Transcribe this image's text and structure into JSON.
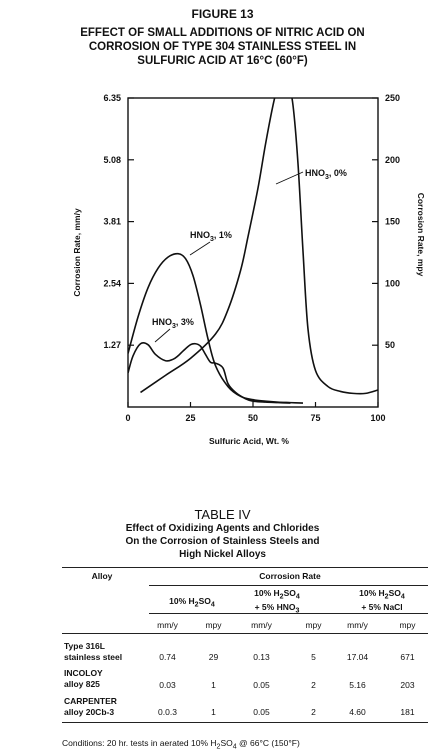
{
  "figure": {
    "label": "FIGURE 13",
    "title_lines": [
      "EFFECT OF SMALL ADDITIONS OF NITRIC ACID ON",
      "CORROSION OF TYPE 304 STAINLESS STEEL IN",
      "SULFURIC ACID AT 16°C (60°F)"
    ]
  },
  "chart_data": {
    "type": "line",
    "title": "EFFECT OF SMALL ADDITIONS OF NITRIC ACID ON CORROSION OF TYPE 304 STAINLESS STEEL IN SULFURIC ACID AT 16°C (60°F)",
    "xlabel": "Sulfuric Acid, Wt. %",
    "ylabel": "Corrosion Rate, mm/y",
    "ylabel_right": "Corrosion Rate, mpy",
    "xlim": [
      0,
      100
    ],
    "ylim": [
      0,
      6.35
    ],
    "ylim_right": [
      0,
      250
    ],
    "xticks": [
      "0",
      "25",
      "50",
      "75",
      "100"
    ],
    "yticks_left": [
      "1.27",
      "2.54",
      "3.81",
      "5.08",
      "6.35"
    ],
    "yticks_right": [
      "50",
      "100",
      "150",
      "200",
      "250"
    ],
    "grid": false,
    "series": [
      {
        "name": "HNO3, 0%",
        "label_main": "HNO",
        "label_sub": "3",
        "label_tail": ", 0%",
        "x": [
          5,
          15,
          25,
          35,
          40,
          45,
          48,
          52,
          55,
          58,
          60,
          62,
          64,
          66,
          68,
          70,
          72,
          75,
          80,
          85,
          90,
          95,
          100
        ],
        "y": [
          0.3,
          0.65,
          1.0,
          1.5,
          2.0,
          2.8,
          3.5,
          4.5,
          5.4,
          6.2,
          6.6,
          6.8,
          6.7,
          6.2,
          5.0,
          3.2,
          1.6,
          0.75,
          0.42,
          0.32,
          0.28,
          0.28,
          0.35
        ]
      },
      {
        "name": "HNO3, 1%",
        "label_main": "HNO",
        "label_sub": "3",
        "label_tail": ", 1%",
        "x": [
          0,
          4,
          8,
          12,
          16,
          20,
          23,
          26,
          29,
          32,
          35,
          40,
          45,
          50,
          55,
          60,
          65,
          70
        ],
        "y": [
          1.1,
          1.85,
          2.45,
          2.85,
          3.08,
          3.15,
          3.05,
          2.7,
          2.1,
          1.4,
          0.85,
          0.42,
          0.22,
          0.15,
          0.12,
          0.1,
          0.09,
          0.08
        ]
      },
      {
        "name": "HNO3, 3%",
        "label_main": "HNO",
        "label_sub": "3",
        "label_tail": ", 3%",
        "x": [
          0,
          2,
          5,
          8,
          11,
          15,
          18,
          20,
          22,
          25,
          27,
          29,
          31,
          33,
          35,
          38,
          40,
          43,
          47,
          50,
          55,
          60,
          65
        ],
        "y": [
          0.7,
          1.05,
          1.3,
          1.28,
          1.08,
          0.95,
          0.98,
          1.05,
          1.15,
          1.28,
          1.3,
          1.25,
          1.08,
          0.92,
          0.9,
          0.8,
          0.48,
          0.3,
          0.17,
          0.12,
          0.1,
          0.09,
          0.08
        ]
      }
    ],
    "annotations": [
      "HNO3, 0%",
      "HNO3, 1%",
      "HNO3, 3%"
    ]
  },
  "table": {
    "title": "TABLE IV",
    "subtitle_lines": [
      "Effect of Oxidizing Agents and Chlorides",
      "On the Corrosion of Stainless Steels and",
      "High Nickel Alloys"
    ],
    "col_alloy": "Alloy",
    "col_group": "Corrosion Rate",
    "conditions": [
      {
        "line1_a": "10% H",
        "line1_s1": "2",
        "line1_b": "SO",
        "line1_s2": "4",
        "line2": ""
      },
      {
        "line1_a": "10% H",
        "line1_s1": "2",
        "line1_b": "SO",
        "line1_s2": "4",
        "line2_a": "+ 5% HNO",
        "line2_s": "3"
      },
      {
        "line1_a": "10% H",
        "line1_s1": "2",
        "line1_b": "SO",
        "line1_s2": "4",
        "line2_a": "+ 5% NaCl",
        "line2_s": ""
      }
    ],
    "units": [
      "mm/y",
      "mpy",
      "mm/y",
      "mpy",
      "mm/y",
      "mpy"
    ],
    "rows": [
      {
        "alloy_l1": "Type 316L",
        "alloy_l2": "stainless steel",
        "values": [
          "0.74",
          "29",
          "0.13",
          "5",
          "17.04",
          "671"
        ]
      },
      {
        "alloy_l1": "INCOLOY",
        "alloy_l2": "alloy 825",
        "values": [
          "0.03",
          "1",
          "0.05",
          "2",
          "5.16",
          "203"
        ]
      },
      {
        "alloy_l1": "CARPENTER",
        "alloy_l2": "alloy 20Cb-3",
        "values": [
          "0.0.3",
          "1",
          "0.05",
          "2",
          "4.60",
          "181"
        ]
      }
    ],
    "footnote_a": "Conditions: 20 hr. tests in aerated 10% H",
    "footnote_s1": "2",
    "footnote_b": "SO",
    "footnote_s2": "4",
    "footnote_c": " @ 66°C (150°F)"
  }
}
